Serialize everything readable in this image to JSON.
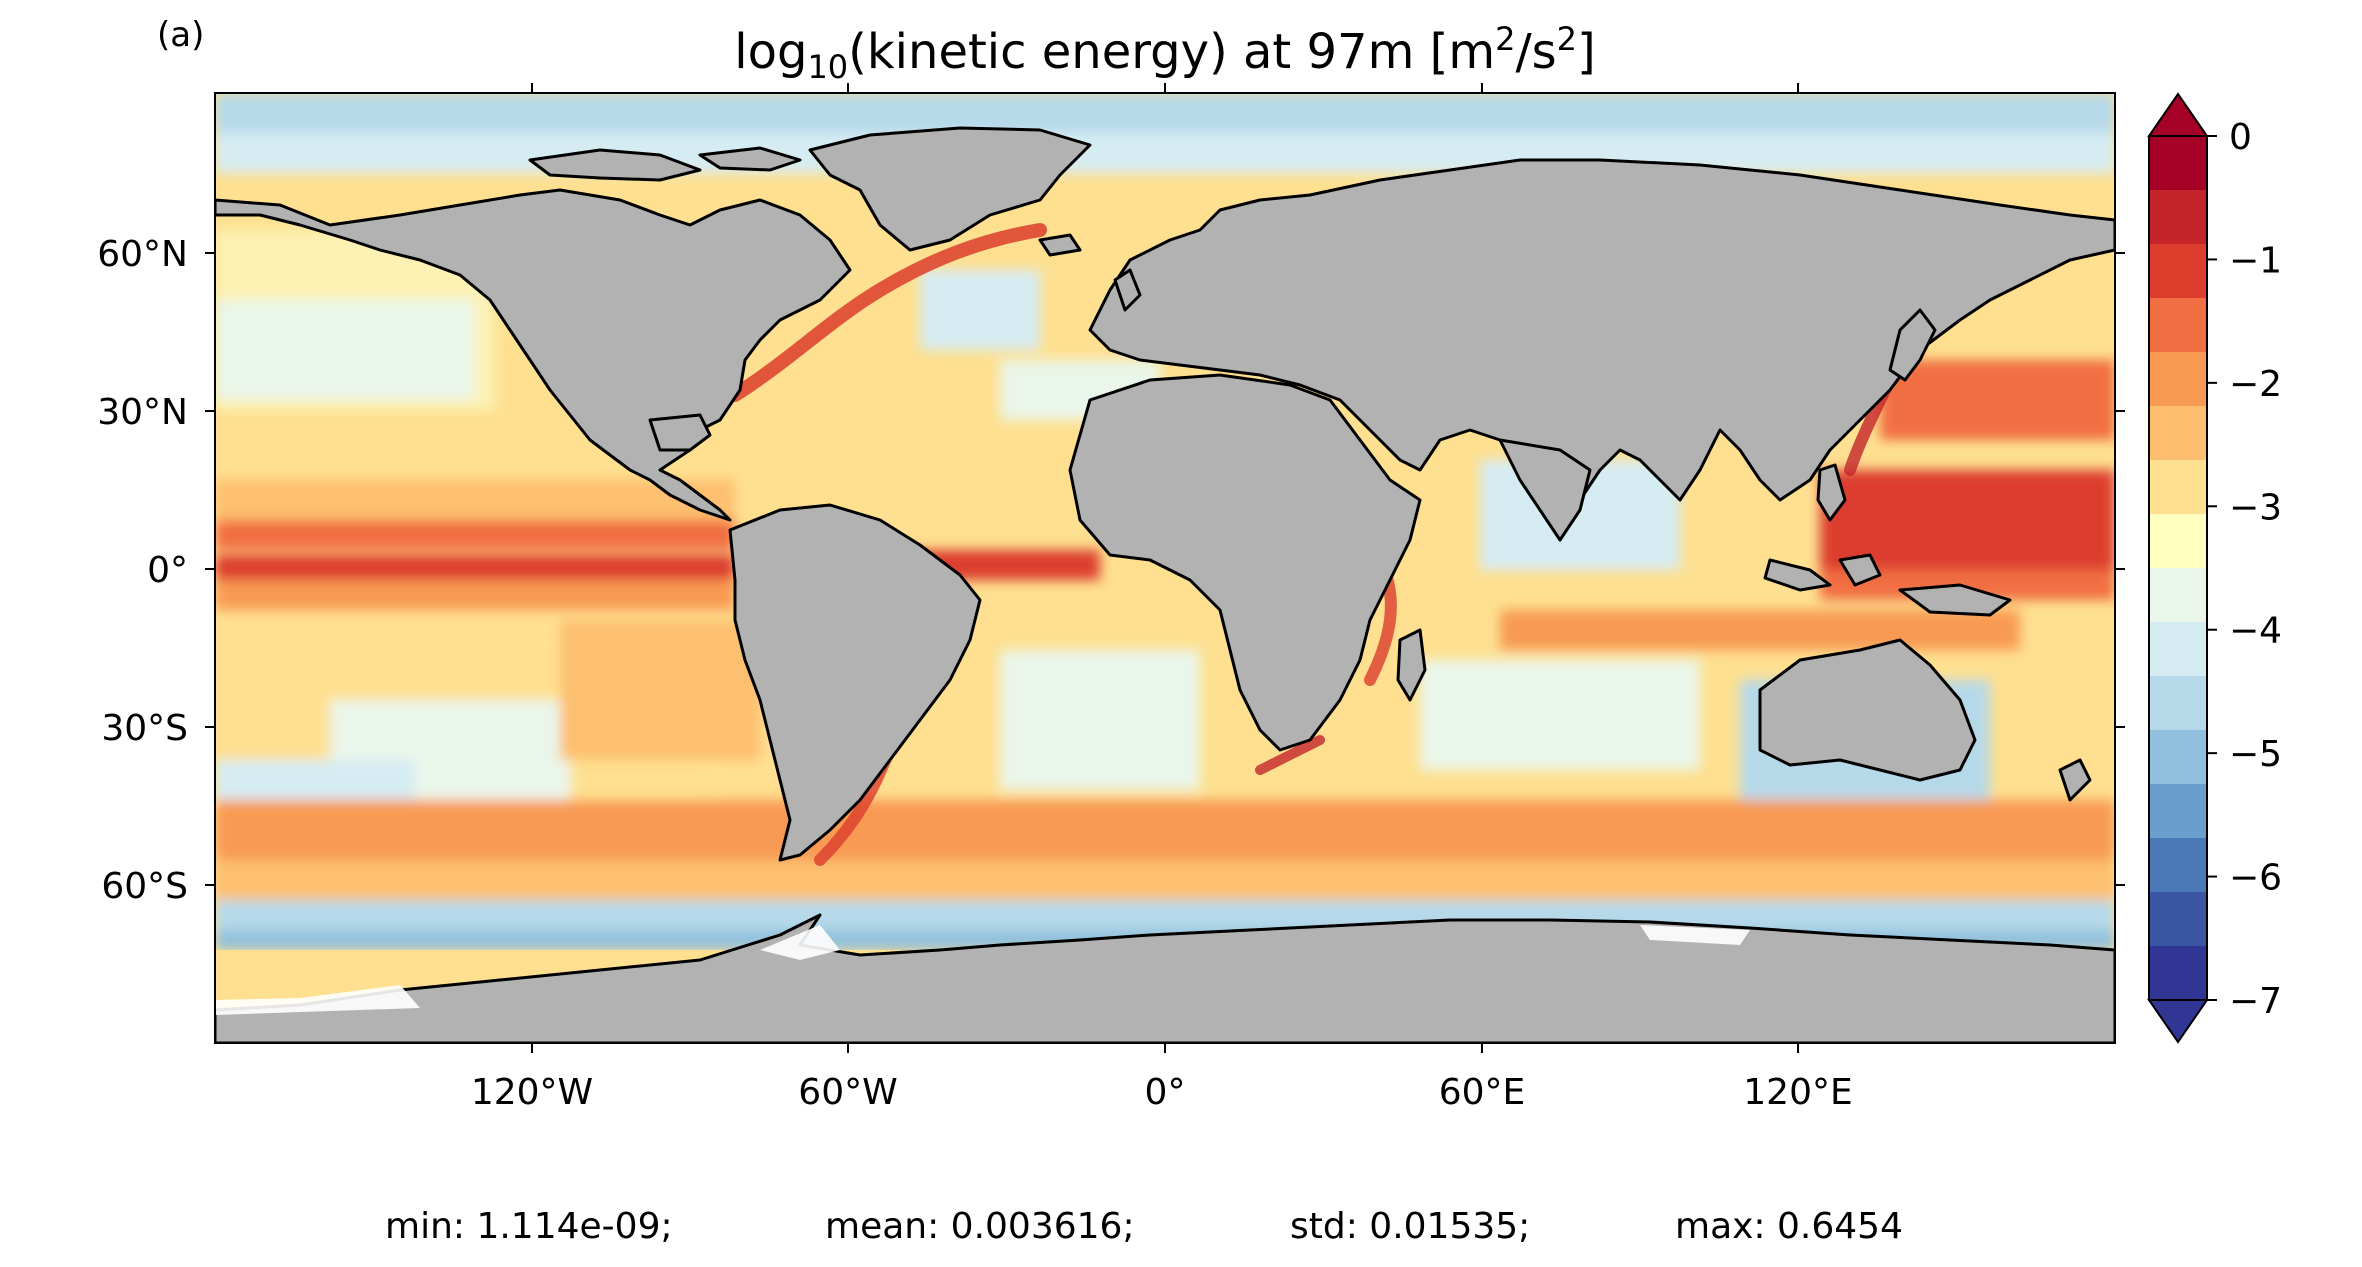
{
  "panel_label": "(a)",
  "title": {
    "prefix": "log",
    "subscript": "10",
    "middle": "(kinetic energy) at 97m [m",
    "sup1": "2",
    "mid2": "/s",
    "sup2": "2",
    "suffix": "]"
  },
  "map": {
    "projection": "PlateCarree",
    "land_color": "#b2b2b2",
    "coastline_color": "#000000",
    "lat_ticks": [
      "60°N",
      "30°N",
      "0°",
      "30°S",
      "60°S"
    ],
    "lon_ticks": [
      "120°W",
      "60°W",
      "0°",
      "60°E",
      "120°E"
    ]
  },
  "colorbar": {
    "ticks": [
      "0",
      "−1",
      "−2",
      "−3",
      "−4",
      "−5",
      "−6",
      "−7"
    ],
    "colors": [
      "#a50026",
      "#c4252a",
      "#dc3d2d",
      "#f16e43",
      "#f89a52",
      "#fdbf6f",
      "#fee090",
      "#ffffbf",
      "#eaf6ea",
      "#d6ecf3",
      "#b6d9ea",
      "#90c0dd",
      "#6a9ecd",
      "#4b78b6",
      "#3a55a2",
      "#313695"
    ],
    "extend": "both"
  },
  "stats": {
    "min": "min: 1.114e-09;",
    "mean": "mean: 0.003616;",
    "std": "std: 0.01535;",
    "max": "max: 0.6454"
  }
}
